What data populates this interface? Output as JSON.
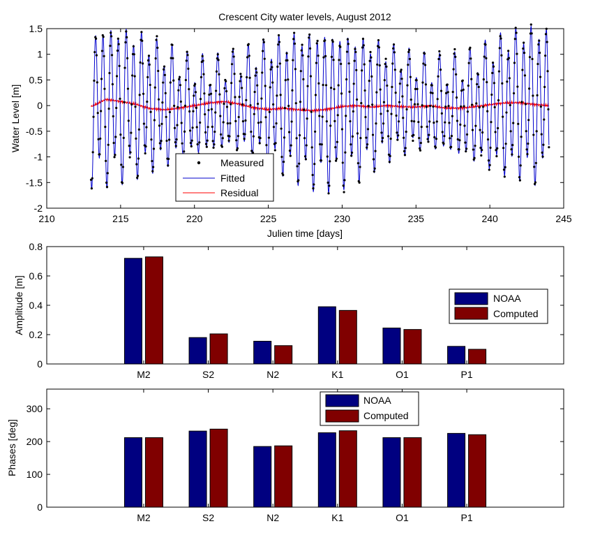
{
  "chart_data": [
    {
      "type": "line",
      "title": "Crescent City water levels, August 2012",
      "xlabel": "Julien time [days]",
      "ylabel": "Water Level [m]",
      "xlim": [
        210,
        245
      ],
      "ylim": [
        -2,
        1.5
      ],
      "xticks": [
        "210",
        "215",
        "220",
        "225",
        "230",
        "235",
        "240",
        "245"
      ],
      "yticks": [
        "-2",
        "-1.5",
        "-1",
        "-0.5",
        "0",
        "0.5",
        "1",
        "1.5"
      ],
      "grid": false,
      "legend": {
        "placement": "lower-left"
      },
      "series": [
        {
          "name": "Measured",
          "style": "points",
          "color": "#000000",
          "x_range": [
            213,
            244
          ],
          "samples_per_day": 24,
          "semidiurnal_amplitude_range": [
            0.75,
            1.35
          ],
          "diurnal_amplitude": 0.3
        },
        {
          "name": "Fitted",
          "style": "line",
          "color": "#0000cc",
          "x_range": [
            213,
            244
          ],
          "semidiurnal_amplitude_range": [
            0.75,
            1.35
          ],
          "diurnal_amplitude": 0.3
        },
        {
          "name": "Residual",
          "style": "line",
          "color": "#ff0000",
          "x_range": [
            213,
            244
          ],
          "y": [
            -0.02,
            0.12,
            0.08,
            0.03,
            -0.06,
            -0.08,
            -0.05,
            0.0,
            0.05,
            0.08,
            0.03,
            -0.04,
            -0.08,
            -0.05,
            -0.08,
            -0.1,
            -0.07,
            -0.02,
            0.0,
            -0.03,
            0.0,
            -0.02,
            -0.03,
            0.0,
            -0.05,
            -0.05,
            -0.02,
            0.02,
            0.05,
            0.06,
            0.02,
            0.0
          ]
        }
      ]
    },
    {
      "type": "bar",
      "ylabel": "Amplitude [m]",
      "ylim": [
        0,
        0.8
      ],
      "yticks": [
        "0",
        "0.2",
        "0.4",
        "0.6",
        "0.8"
      ],
      "categories": [
        "M2",
        "S2",
        "N2",
        "K1",
        "O1",
        "P1"
      ],
      "legend": {
        "placement": "right"
      },
      "series": [
        {
          "name": "NOAA",
          "color": "#000080",
          "values": [
            0.72,
            0.18,
            0.155,
            0.39,
            0.245,
            0.12
          ]
        },
        {
          "name": "Computed",
          "color": "#800000",
          "values": [
            0.73,
            0.205,
            0.125,
            0.365,
            0.235,
            0.1
          ]
        }
      ]
    },
    {
      "type": "bar",
      "ylabel": "Phases [deg]",
      "ylim": [
        0,
        360
      ],
      "yticks": [
        "0",
        "100",
        "200",
        "300"
      ],
      "categories": [
        "M2",
        "S2",
        "N2",
        "K1",
        "O1",
        "P1"
      ],
      "legend": {
        "placement": "top"
      },
      "series": [
        {
          "name": "NOAA",
          "color": "#000080",
          "values": [
            212,
            232,
            185,
            227,
            212,
            225
          ]
        },
        {
          "name": "Computed",
          "color": "#800000",
          "values": [
            212,
            238,
            187,
            233,
            212,
            221
          ]
        }
      ]
    }
  ]
}
